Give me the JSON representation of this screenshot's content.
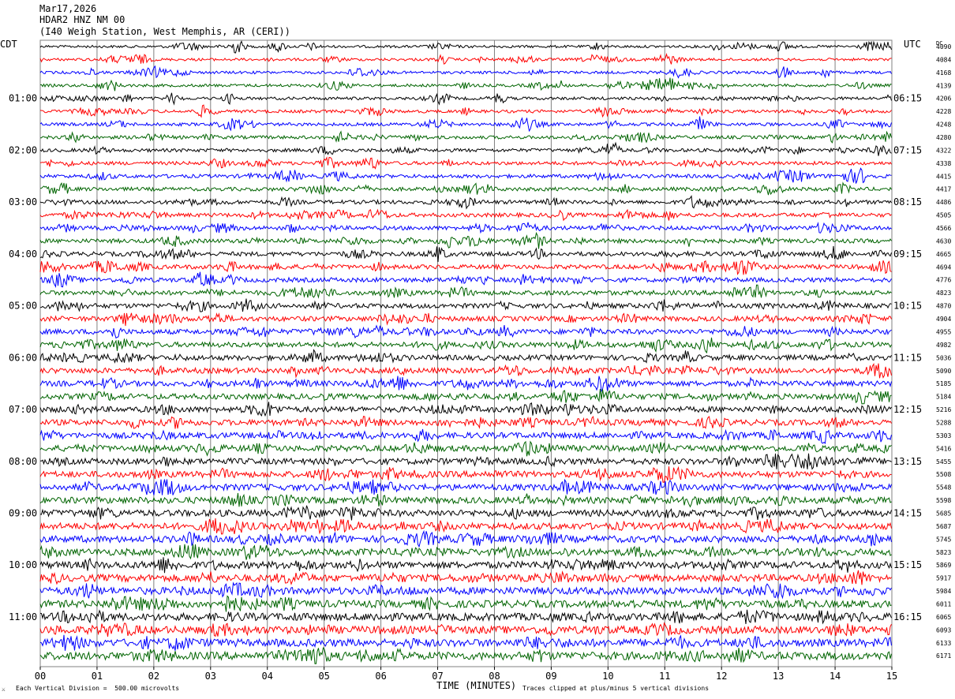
{
  "header": {
    "date": "Mar17,2026",
    "station": "HDAR2 HNZ NM 00",
    "location": "(I40 Weigh Station, West Memphis, AR (CERI))"
  },
  "labels": {
    "left_tz": "CDT",
    "right_tz": "UTC",
    "dc_header": "DC"
  },
  "footer": {
    "scale": "Each Vertical Division =  500.00 microvolts",
    "clip": "Traces clipped at plus/minus 5 vertical divisions",
    "corner": "⚔"
  },
  "colors": {
    "trace_cycle": [
      "#000000",
      "#ff0000",
      "#0000ff",
      "#006400"
    ],
    "grid": "#808080"
  },
  "chart_data": {
    "type": "line",
    "title": "HDAR2 HNZ NM 00",
    "xlabel": "TIME (MINUTES)",
    "xlim": [
      0,
      15
    ],
    "x_ticks": [
      "00",
      "01",
      "02",
      "03",
      "04",
      "05",
      "06",
      "07",
      "08",
      "09",
      "10",
      "11",
      "12",
      "13",
      "14",
      "15"
    ],
    "left_hour_labels": [
      "01:00",
      "02:00",
      "03:00",
      "04:00",
      "05:00",
      "06:00",
      "07:00",
      "08:00",
      "09:00",
      "10:00",
      "11:00"
    ],
    "right_hour_labels": [
      "06:15",
      "07:15",
      "08:15",
      "09:15",
      "10:15",
      "11:15",
      "12:15",
      "13:15",
      "14:15",
      "15:15",
      "16:15"
    ],
    "trace_count": 48,
    "dc_offsets": [
      "4090",
      "4084",
      "4168",
      "4139",
      "4206",
      "4228",
      "4248",
      "4280",
      "4322",
      "4338",
      "4415",
      "4417",
      "4486",
      "4505",
      "4566",
      "4630",
      "4665",
      "4694",
      "4776",
      "4823",
      "4870",
      "4904",
      "4955",
      "4982",
      "5036",
      "5090",
      "5185",
      "5184",
      "5216",
      "5288",
      "5303",
      "5416",
      "5455",
      "5508",
      "5548",
      "5598",
      "5685",
      "5687",
      "5745",
      "5823",
      "5869",
      "5917",
      "5984",
      "6011",
      "6065",
      "6093",
      "6133",
      "6171"
    ]
  }
}
